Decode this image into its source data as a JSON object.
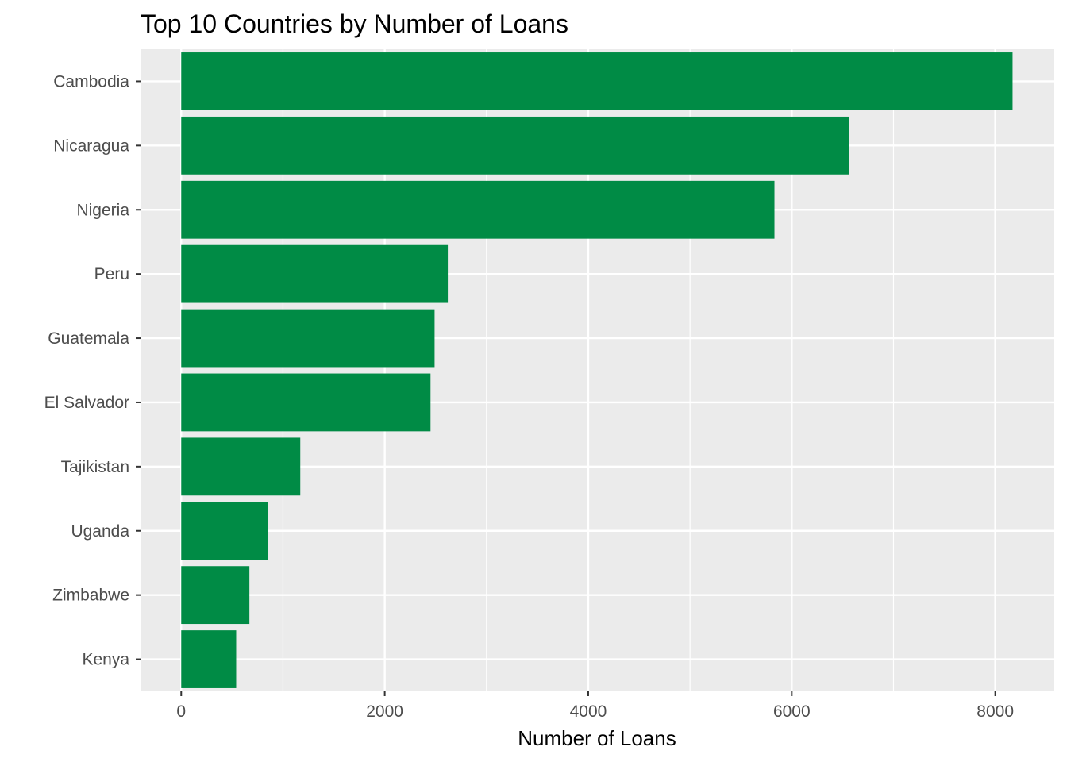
{
  "chart_data": {
    "type": "bar",
    "orientation": "horizontal",
    "title": "Top 10 Countries by Number of Loans",
    "xlabel": "Number of Loans",
    "ylabel": "",
    "categories": [
      "Cambodia",
      "Nicaragua",
      "Nigeria",
      "Peru",
      "Guatemala",
      "El Salvador",
      "Tajikistan",
      "Uganda",
      "Zimbabwe",
      "Kenya"
    ],
    "values": [
      8170,
      6560,
      5830,
      2620,
      2490,
      2450,
      1170,
      850,
      670,
      540
    ],
    "xlim": [
      -400,
      8580
    ],
    "xticks": [
      "0",
      "2000",
      "4000",
      "6000",
      "8000"
    ],
    "xtick_values": [
      0,
      2000,
      4000,
      6000,
      8000
    ],
    "grid": true,
    "legend": "none",
    "bar_color": "#008B45",
    "panel_color": "#EBEBEB",
    "grid_color": "#FFFFFF"
  }
}
